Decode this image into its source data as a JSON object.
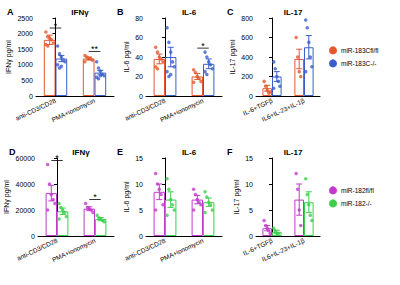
{
  "chart_data": [
    {
      "type": "bar",
      "panel": "A",
      "title": "IFNγ",
      "y_label": "IFNγ pg/ml",
      "categories": [
        "anti-CD3/CD28",
        "PMA+ionomycin"
      ],
      "ylim": [
        0,
        2500
      ],
      "yticks": [
        0,
        500,
        1000,
        1500,
        2000,
        2500
      ],
      "grid": false,
      "series": [
        {
          "name": "miR-183Cfl/fl",
          "color": "#e4572e",
          "values": [
            1800,
            1200
          ],
          "errors": [
            150,
            50
          ],
          "points": [
            [
              2050,
              1900,
              1850,
              1800,
              1700,
              1650,
              1600
            ],
            [
              1300,
              1250,
              1200,
              1200,
              1150,
              1100
            ]
          ]
        },
        {
          "name": "miR-183C-/-",
          "color": "#3a5fcd",
          "values": [
            1200,
            750
          ],
          "errors": [
            100,
            70
          ],
          "points": [
            [
              1600,
              1350,
              1250,
              1150,
              1100,
              1000,
              900,
              950
            ],
            [
              1100,
              900,
              800,
              700,
              650,
              600,
              550,
              650
            ]
          ]
        }
      ],
      "annotations": [
        {
          "text": "*",
          "category": 0
        },
        {
          "text": "**",
          "category": 1
        }
      ]
    },
    {
      "type": "bar",
      "panel": "B",
      "title": "IL-6",
      "y_label": "IL-6 pg/ml",
      "categories": [
        "anti-CD3/CD28",
        "PMA+ionomycin"
      ],
      "ylim": [
        0,
        80
      ],
      "yticks": [
        0,
        20,
        40,
        60,
        80
      ],
      "grid": false,
      "series": [
        {
          "name": "miR-183Cfl/fl",
          "color": "#e4572e",
          "values": [
            38,
            20
          ],
          "errors": [
            5,
            3
          ],
          "points": [
            [
              50,
              45,
              40,
              38,
              35,
              30,
              28
            ],
            [
              27,
              24,
              20,
              18,
              15,
              14
            ]
          ]
        },
        {
          "name": "miR-183C-/-",
          "color": "#3a5fcd",
          "values": [
            40,
            33
          ],
          "errors": [
            10,
            5
          ],
          "points": [
            [
              70,
              55,
              45,
              35,
              30,
              25,
              20,
              22
            ],
            [
              45,
              40,
              35,
              32,
              28,
              25,
              22
            ]
          ]
        }
      ],
      "annotations": [
        {
          "text": "*",
          "category": 1
        }
      ]
    },
    {
      "type": "bar",
      "panel": "C",
      "title": "IL-17",
      "y_label": "IL-17 pg/ml",
      "categories": [
        "IL-6+TGFβ",
        "IL6+IL-23+IL-1β"
      ],
      "ylim": [
        0,
        800
      ],
      "yticks": [
        0,
        200,
        400,
        600,
        800
      ],
      "grid": false,
      "legend": "right",
      "series": [
        {
          "name": "miR-183Cfl/fl",
          "color": "#e4572e",
          "values": [
            80,
            380
          ],
          "errors": [
            30,
            100
          ],
          "points": [
            [
              150,
              100,
              60,
              30,
              40
            ],
            [
              600,
              400,
              250,
              200
            ]
          ]
        },
        {
          "name": "miR-183C-/-",
          "color": "#3a5fcd",
          "values": [
            200,
            500
          ],
          "errors": [
            50,
            120
          ],
          "points": [
            [
              350,
              280,
              200,
              150,
              100,
              80
            ],
            [
              780,
              700,
              550,
              400,
              300,
              250
            ]
          ]
        }
      ],
      "annotations": []
    },
    {
      "type": "bar",
      "panel": "D",
      "title": "IFNγ",
      "y_label": "IFNγ pg/ml",
      "categories": [
        "anti-CD3/CD28",
        "PMA+ionomycin"
      ],
      "ylim": [
        0,
        60000
      ],
      "yticks": [
        0,
        20000,
        40000,
        60000
      ],
      "grid": false,
      "series": [
        {
          "name": "miR-182fl/fl",
          "color": "#c03bcc",
          "values": [
            33000,
            21000
          ],
          "errors": [
            6000,
            1500
          ],
          "points": [
            [
              55000,
              40000,
              32000,
              28000,
              25000,
              20000
            ],
            [
              25000,
              22000,
              21000,
              20000,
              18000
            ]
          ]
        },
        {
          "name": "miR-182-/-",
          "color": "#3ccf4e",
          "values": [
            19000,
            13000
          ],
          "errors": [
            2500,
            1200
          ],
          "points": [
            [
              25000,
              22000,
              20000,
              18000,
              15000,
              13000
            ],
            [
              16000,
              14000,
              13000,
              12000,
              11000
            ]
          ]
        }
      ],
      "annotations": [
        {
          "text": "*",
          "category": 0
        },
        {
          "text": "*",
          "category": 1
        }
      ]
    },
    {
      "type": "bar",
      "panel": "E",
      "title": "IL-6",
      "y_label": "IL-6 pg/ml",
      "categories": [
        "anti-CD3/CD28",
        "PMA+ionomycin"
      ],
      "ylim": [
        0,
        15
      ],
      "yticks": [
        0,
        5,
        10,
        15
      ],
      "grid": false,
      "series": [
        {
          "name": "miR-182fl/fl",
          "color": "#c03bcc",
          "values": [
            8.5,
            7
          ],
          "errors": [
            1.5,
            0.8
          ],
          "points": [
            [
              12,
              10,
              9,
              8,
              6,
              5
            ],
            [
              9,
              8,
              7,
              6.5,
              6,
              5
            ]
          ]
        },
        {
          "name": "miR-182-/-",
          "color": "#3ccf4e",
          "values": [
            7,
            6.5
          ],
          "errors": [
            1.5,
            0.8
          ],
          "points": [
            [
              11,
              9,
              7,
              6,
              5,
              4
            ],
            [
              8.5,
              7.5,
              6.5,
              6,
              5,
              4.5
            ]
          ]
        }
      ],
      "annotations": []
    },
    {
      "type": "bar",
      "panel": "F",
      "title": "IL-17",
      "y_label": "IL-17 pg/ml",
      "categories": [
        "IL-6+TGFβ",
        "IL6+IL-23+IL-1β"
      ],
      "ylim": [
        0,
        15
      ],
      "yticks": [
        0,
        5,
        10,
        15
      ],
      "grid": false,
      "legend": "right",
      "series": [
        {
          "name": "miR-182fl/fl",
          "color": "#c03bcc",
          "values": [
            1.5,
            7
          ],
          "errors": [
            0.5,
            3
          ],
          "points": [
            [
              3,
              2,
              1.5,
              1,
              0.5
            ],
            [
              12,
              9,
              5,
              2
            ]
          ]
        },
        {
          "name": "miR-182-/-",
          "color": "#3ccf4e",
          "values": [
            0.8,
            6.5
          ],
          "errors": [
            0.3,
            2
          ],
          "points": [
            [
              1.5,
              1,
              0.5,
              0.5
            ],
            [
              11,
              8,
              6,
              4,
              3
            ]
          ]
        }
      ],
      "annotations": []
    }
  ]
}
